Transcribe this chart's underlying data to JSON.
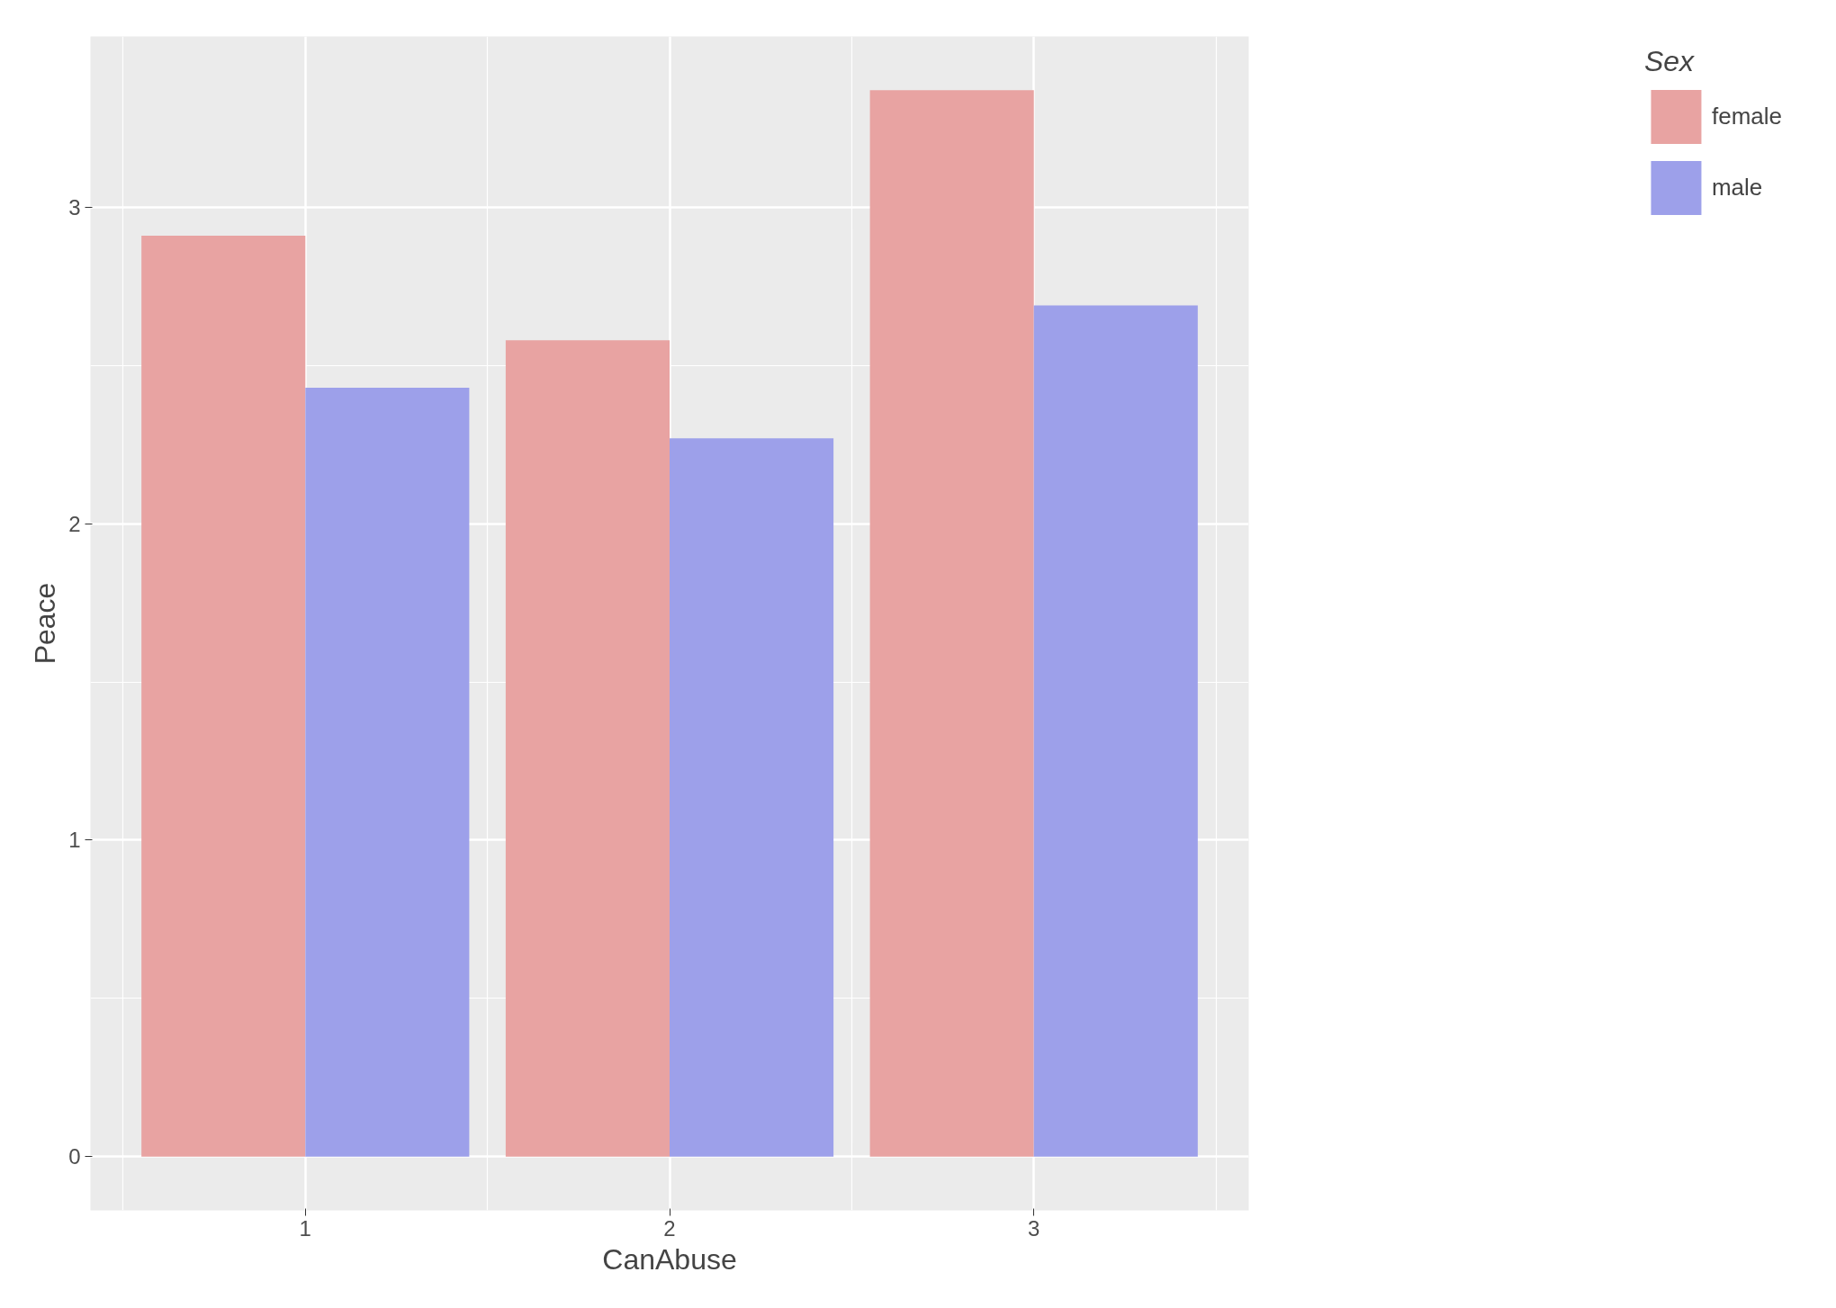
{
  "chart_data": {
    "type": "bar",
    "xlabel": "CanAbuse",
    "ylabel": "Peace",
    "legend_title": "Sex",
    "categories": [
      "1",
      "2",
      "3"
    ],
    "series": [
      {
        "name": "female",
        "color": "#e8a3a2",
        "values": [
          2.91,
          2.58,
          3.37
        ]
      },
      {
        "name": "male",
        "color": "#9da0ea",
        "values": [
          2.43,
          2.27,
          2.69
        ]
      }
    ],
    "ylim": [
      -0.17,
      3.54
    ],
    "yticks": [
      0,
      1,
      2,
      3
    ],
    "grid": true,
    "legend": "right"
  }
}
